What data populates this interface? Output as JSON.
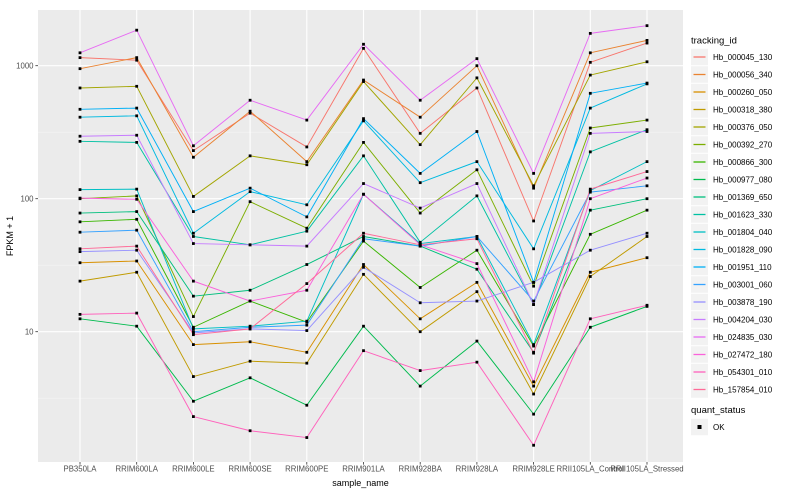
{
  "figure_type": "ggplot-line-chart",
  "panel": {
    "background": "#EBEBEB",
    "grid_major_color": "#FFFFFF",
    "grid_minor_color": "#F5F5F5",
    "tick_color": "#333333",
    "axis_text_color": "#4D4D4D",
    "title_text_color": "#000000"
  },
  "chart_data": {
    "type": "line",
    "title": "",
    "xlabel": "sample_name",
    "ylabel": "FPKM + 1",
    "y_scale": "log10",
    "ylim": [
      1,
      2630
    ],
    "y_ticks": [
      {
        "value": 10,
        "label": "10"
      },
      {
        "value": 100,
        "label": "100"
      },
      {
        "value": 1000,
        "label": "1000"
      }
    ],
    "grid": true,
    "legend_position": "right",
    "point_color": "#000000",
    "point_shape": "square",
    "categories": [
      "PB350LA",
      "RRIM600LA",
      "RRIM600LE",
      "RRIM600SE",
      "RRIM600PE",
      "RRIM901LA",
      "RRIM928BA",
      "RRIM928LA",
      "RRIM928LE",
      "RRII105LA_Control",
      "RRII105LA_Stressed"
    ],
    "series": [
      {
        "name": "Hb_000045_130",
        "color": "#F8766D",
        "values": [
          1150,
          1100,
          230,
          440,
          245,
          1350,
          310,
          680,
          68,
          1060,
          1480
        ]
      },
      {
        "name": "Hb_000056_340",
        "color": "#EA8331",
        "values": [
          950,
          1150,
          205,
          455,
          190,
          780,
          410,
          1000,
          120,
          1250,
          1550
        ]
      },
      {
        "name": "Hb_000260_050",
        "color": "#D89000",
        "values": [
          33,
          34,
          8,
          8.4,
          7,
          32,
          12.5,
          23.5,
          3.9,
          28,
          36
        ]
      },
      {
        "name": "Hb_000318_380",
        "color": "#C09B00",
        "values": [
          24,
          28,
          4.6,
          6,
          5.8,
          27,
          10,
          20,
          3.4,
          26,
          52
        ]
      },
      {
        "name": "Hb_000376_050",
        "color": "#A3A500",
        "values": [
          680,
          700,
          104,
          210,
          180,
          760,
          255,
          810,
          125,
          850,
          1070
        ]
      },
      {
        "name": "Hb_000392_270",
        "color": "#7CAE00",
        "values": [
          100,
          105,
          13,
          95,
          60,
          265,
          78,
          165,
          22,
          340,
          390
        ]
      },
      {
        "name": "Hb_000866_300",
        "color": "#39B600",
        "values": [
          67,
          70,
          10.8,
          17,
          11.8,
          48,
          21.5,
          41,
          7.8,
          54,
          82
        ]
      },
      {
        "name": "Hb_000977_080",
        "color": "#00BB4E",
        "values": [
          12.5,
          11,
          3,
          4.5,
          2.8,
          11,
          3.9,
          8.5,
          2.4,
          10.8,
          15.5
        ]
      },
      {
        "name": "Hb_001369_650",
        "color": "#00BF7D",
        "values": [
          78,
          80,
          18.5,
          20.5,
          32,
          52,
          44,
          29.5,
          7,
          82,
          100
        ]
      },
      {
        "name": "Hb_001623_330",
        "color": "#00C1A3",
        "values": [
          270,
          265,
          52,
          45,
          57,
          210,
          47,
          105,
          16,
          225,
          330
        ]
      },
      {
        "name": "Hb_001804_040",
        "color": "#00BFC4",
        "values": [
          117,
          118,
          10.5,
          11,
          12,
          108,
          46,
          52,
          8,
          115,
          190
        ]
      },
      {
        "name": "Hb_001828_090",
        "color": "#00BAE0",
        "values": [
          410,
          420,
          55,
          113,
          90,
          385,
          132,
          190,
          42,
          480,
          730
        ]
      },
      {
        "name": "Hb_001951_110",
        "color": "#00B0F6",
        "values": [
          470,
          480,
          80,
          120,
          73,
          400,
          155,
          320,
          23.5,
          620,
          740
        ]
      },
      {
        "name": "Hb_003001_060",
        "color": "#35A2FF",
        "values": [
          56,
          58,
          10,
          10.8,
          11.2,
          50,
          44,
          52,
          17,
          112,
          125
        ]
      },
      {
        "name": "Hb_003878_190",
        "color": "#9590FF",
        "values": [
          40,
          41,
          9.8,
          10.5,
          10.2,
          30.5,
          16.5,
          17,
          23.5,
          41,
          55
        ]
      },
      {
        "name": "Hb_004204_030",
        "color": "#C77CFF",
        "values": [
          295,
          300,
          46,
          45,
          44,
          130,
          85,
          130,
          16,
          310,
          320
        ]
      },
      {
        "name": "Hb_024835_030",
        "color": "#E76BF3",
        "values": [
          1250,
          1850,
          250,
          550,
          390,
          1450,
          550,
          1130,
          155,
          1750,
          2000
        ]
      },
      {
        "name": "Hb_027472_180",
        "color": "#FA62DB",
        "values": [
          101,
          99,
          24,
          17,
          20.5,
          108,
          45,
          32.5,
          4.2,
          100,
          143
        ]
      },
      {
        "name": "Hb_054301_010",
        "color": "#FF62BC",
        "values": [
          13.5,
          13.8,
          2.3,
          1.8,
          1.6,
          7.2,
          5.1,
          5.9,
          1.4,
          12.5,
          15.8
        ]
      },
      {
        "name": "Hb_157854_010",
        "color": "#FF6A98",
        "values": [
          42,
          44,
          9.5,
          10.5,
          23,
          55,
          45,
          50,
          6.9,
          118,
          160
        ]
      }
    ]
  },
  "legend": {
    "tracking_title": "tracking_id",
    "quant_title": "quant_status",
    "quant_items": [
      {
        "label": "OK"
      }
    ],
    "key_fill": "#F2F2F2"
  }
}
